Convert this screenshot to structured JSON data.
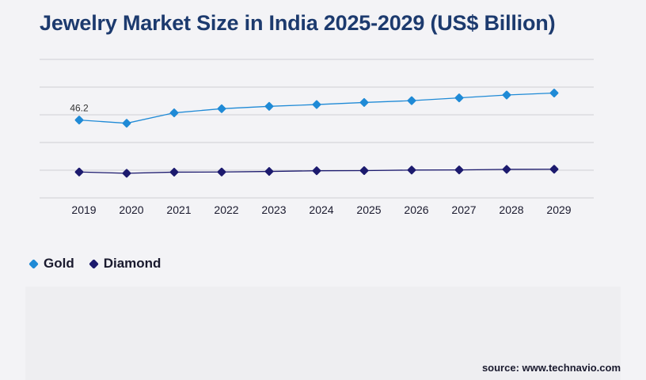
{
  "header": {
    "title": "Jewelry Market Size in India 2025-2029 (US$ Billion)"
  },
  "legend": {
    "items": [
      {
        "label": "Gold",
        "color": "#1f8ad6"
      },
      {
        "label": "Diamond",
        "color": "#1c1a6e"
      }
    ]
  },
  "footer": {
    "source": "source: www.technavio.com"
  },
  "chart_data": {
    "type": "line",
    "x": [
      "2019",
      "2020",
      "2021",
      "2022",
      "2023",
      "2024",
      "2025",
      "2026",
      "2027",
      "2028",
      "2029"
    ],
    "series": [
      {
        "name": "Gold",
        "color": "#1f8ad6",
        "values": [
          46.2,
          43.9,
          51.4,
          54.4,
          56.1,
          57.4,
          58.9,
          60.2,
          62.2,
          64.3,
          65.7
        ]
      },
      {
        "name": "Diamond",
        "color": "#1c1a6e",
        "values": [
          8.7,
          7.8,
          8.6,
          8.7,
          9.1,
          9.6,
          9.7,
          10.1,
          10.2,
          10.6,
          10.7
        ]
      }
    ],
    "data_labels": [
      {
        "series": "Gold",
        "x": "2019",
        "text": "46.2"
      }
    ],
    "title": "Jewelry Market Size in India 2025-2029 (US$ Billion)",
    "xlabel": "",
    "ylabel": "",
    "ylim": [
      -10,
      90
    ],
    "y_gridlines": [
      10,
      30,
      50,
      70,
      90
    ],
    "grid": true,
    "y_tick_labels_shown": false,
    "legend_position": "bottom-left"
  }
}
